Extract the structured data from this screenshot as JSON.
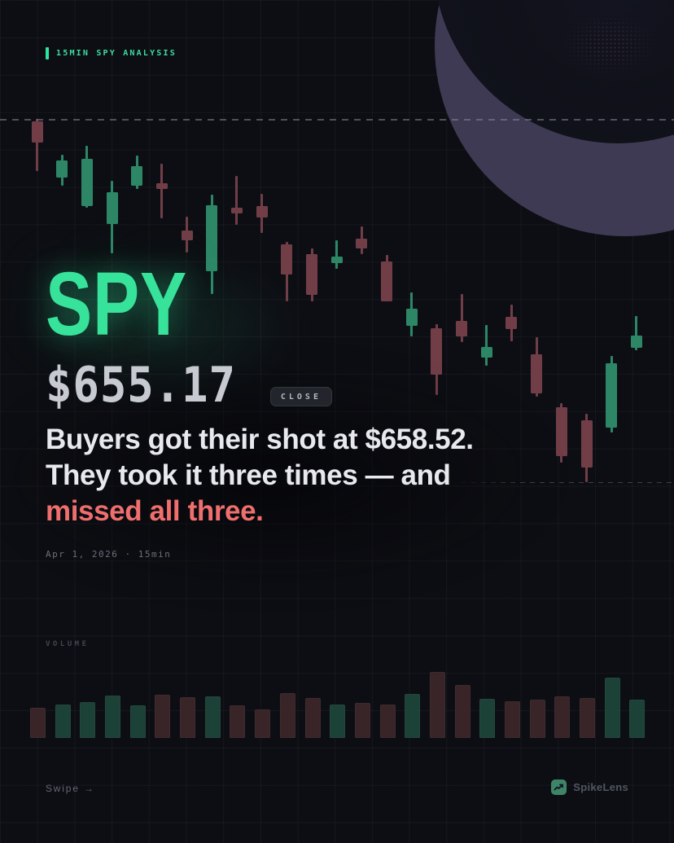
{
  "tag": {
    "label": "15MIN SPY ANALYSIS"
  },
  "header": {
    "ticker": "SPY",
    "price": "$655.17",
    "close_label": "CLOSE"
  },
  "headline": {
    "line1": "Buyers got their shot at $658.52.",
    "line2": "They took it three times — and",
    "line3": "missed all three."
  },
  "date_line": "Apr 1, 2026 · 15min",
  "volume_label": "VOLUME",
  "footer": {
    "swipe": "Swipe →",
    "brand": "SpikeLens"
  },
  "colors": {
    "background": "#0d0e13",
    "accent_green": "#37e29a",
    "headline_red": "#ef6e6e",
    "candle_green": "#2d8766",
    "candle_red": "#713e48",
    "volume_green": "#1c4136",
    "volume_red": "#392428",
    "moon_purple": "#3f3a54"
  },
  "chart_data": {
    "type": "candlestick",
    "symbol": "SPY",
    "timeframe": "15min",
    "session_date": "Apr 1, 2026",
    "close": 655.17,
    "tested_level": 658.52,
    "legend_position": "none",
    "grid": true,
    "levels": [
      {
        "price": 658.52,
        "span": "full"
      },
      {
        "price": 652.9,
        "span": "right"
      }
    ],
    "candles": [
      {
        "o": 658.48,
        "h": 658.52,
        "l": 657.71,
        "c": 658.15
      },
      {
        "o": 657.61,
        "h": 657.97,
        "l": 657.49,
        "c": 657.88
      },
      {
        "o": 657.17,
        "h": 658.1,
        "l": 657.15,
        "c": 657.9
      },
      {
        "o": 656.89,
        "h": 657.56,
        "l": 656.44,
        "c": 657.39
      },
      {
        "o": 657.49,
        "h": 657.95,
        "l": 657.44,
        "c": 657.79
      },
      {
        "o": 657.52,
        "h": 657.83,
        "l": 656.98,
        "c": 657.44
      },
      {
        "o": 656.79,
        "h": 657.01,
        "l": 656.45,
        "c": 656.64
      },
      {
        "o": 656.16,
        "h": 657.35,
        "l": 655.81,
        "c": 657.18
      },
      {
        "o": 657.15,
        "h": 657.64,
        "l": 656.88,
        "c": 657.06
      },
      {
        "o": 657.17,
        "h": 657.36,
        "l": 656.76,
        "c": 657.0
      },
      {
        "o": 656.58,
        "h": 656.62,
        "l": 655.7,
        "c": 656.11
      },
      {
        "o": 656.43,
        "h": 656.52,
        "l": 655.7,
        "c": 655.8
      },
      {
        "o": 656.29,
        "h": 656.64,
        "l": 656.2,
        "c": 656.39
      },
      {
        "o": 656.67,
        "h": 656.86,
        "l": 656.43,
        "c": 656.52
      },
      {
        "o": 656.32,
        "h": 656.42,
        "l": 655.7,
        "c": 655.7
      },
      {
        "o": 655.32,
        "h": 655.84,
        "l": 655.16,
        "c": 655.58
      },
      {
        "o": 655.28,
        "h": 655.35,
        "l": 654.25,
        "c": 654.56
      },
      {
        "o": 655.4,
        "h": 655.81,
        "l": 655.07,
        "c": 655.16
      },
      {
        "o": 654.83,
        "h": 655.33,
        "l": 654.7,
        "c": 654.99
      },
      {
        "o": 655.46,
        "h": 655.65,
        "l": 655.08,
        "c": 655.27
      },
      {
        "o": 654.88,
        "h": 655.14,
        "l": 654.22,
        "c": 654.27
      },
      {
        "o": 654.06,
        "h": 654.12,
        "l": 653.21,
        "c": 653.3
      },
      {
        "o": 653.86,
        "h": 653.96,
        "l": 652.9,
        "c": 653.13
      },
      {
        "o": 653.74,
        "h": 654.85,
        "l": 653.67,
        "c": 654.74
      },
      {
        "o": 654.98,
        "h": 655.47,
        "l": 654.94,
        "c": 655.17
      }
    ],
    "volume_rel": [
      35,
      39,
      42,
      50,
      38,
      51,
      48,
      49,
      38,
      33,
      53,
      47,
      39,
      41,
      39,
      52,
      79,
      63,
      46,
      43,
      45,
      49,
      47,
      72,
      45
    ]
  }
}
